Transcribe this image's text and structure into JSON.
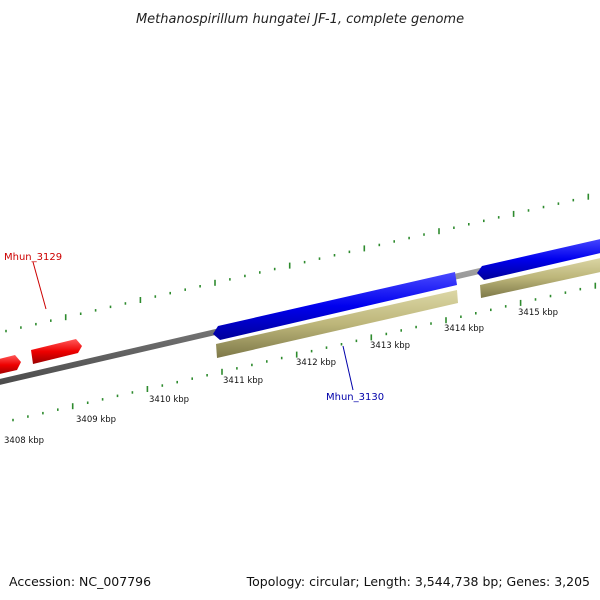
{
  "title": "Methanospirillum hungatei JF-1, complete genome",
  "footer": {
    "accession": "Accession: NC_007796",
    "topology": "Topology: circular; Length: 3,544,738 bp; Genes: 3,205"
  },
  "colors": {
    "backbone": "#808080",
    "minor_tick": "#2e8b2e",
    "major_tick": "#2e7d2e",
    "forward_gene": "#0000ee",
    "reverse_gene": "#ee0000",
    "cds": "#bdb67a",
    "label_red": "#cc0000",
    "label_blue": "#0000aa"
  },
  "scale_labels": [
    "3408 kbp",
    "3409 kbp",
    "3410 kbp",
    "3411 kbp",
    "3412 kbp",
    "3413 kbp",
    "3414 kbp",
    "3415 kbp"
  ],
  "genes": [
    {
      "name": "Mhun_3129",
      "strand": "reverse",
      "color": "red"
    },
    {
      "name": "Mhun_3130",
      "strand": "forward",
      "color": "blue"
    }
  ]
}
